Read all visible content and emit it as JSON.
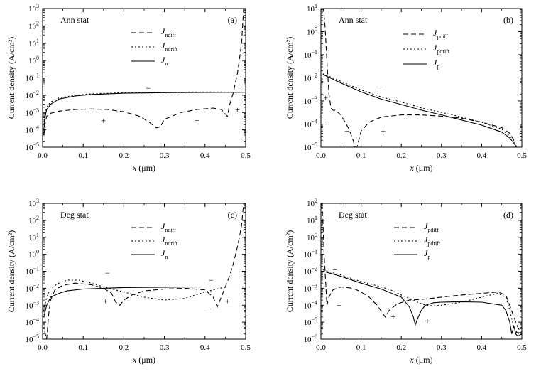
{
  "chart_data": [
    {
      "type": "line",
      "y_scale": "log",
      "panel_label": "(a)",
      "state_label": "Ann stat",
      "xlabel": "x (μm)",
      "ylabel": "Current density (A/cm²)",
      "xlim": [
        0,
        0.5
      ],
      "ylim_exp": [
        -5,
        3
      ],
      "x_ticks": [
        "0.0",
        "0.1",
        "0.2",
        "0.3",
        "0.4",
        "0.5"
      ],
      "legend": {
        "position": "top-right"
      },
      "series": [
        {
          "name": "J",
          "sub": "ndiff",
          "style": "dashed",
          "x": [
            0.003,
            0.006,
            0.01,
            0.02,
            0.04,
            0.08,
            0.12,
            0.16,
            0.2,
            0.24,
            0.265,
            0.28,
            0.29,
            0.3,
            0.34,
            0.38,
            0.42,
            0.44,
            0.455,
            0.46,
            0.47,
            0.48,
            0.49,
            0.495
          ],
          "y": [
            5e-05,
            0.0002,
            0.0006,
            0.0009,
            0.0012,
            0.0015,
            0.0016,
            0.0015,
            0.0011,
            0.0006,
            0.00025,
            0.00013,
            0.00015,
            0.0004,
            0.001,
            0.0015,
            0.0018,
            0.0015,
            0.0006,
            0.0025,
            0.015,
            0.2,
            10,
            1000
          ]
        },
        {
          "name": "J",
          "sub": "ndrift",
          "style": "dotted",
          "x": [
            0.003,
            0.006,
            0.01,
            0.02,
            0.04,
            0.08,
            0.12,
            0.2,
            0.3,
            0.4,
            0.5
          ],
          "y": [
            0.0002,
            0.0008,
            0.002,
            0.004,
            0.007,
            0.01,
            0.012,
            0.014,
            0.015,
            0.0152,
            0.015
          ]
        },
        {
          "name": "J",
          "sub": "n",
          "style": "solid",
          "x": [
            0.003,
            0.006,
            0.01,
            0.02,
            0.04,
            0.08,
            0.12,
            0.2,
            0.3,
            0.4,
            0.5
          ],
          "y": [
            0.0001,
            0.0005,
            0.0015,
            0.003,
            0.006,
            0.009,
            0.011,
            0.013,
            0.014,
            0.0145,
            0.0148
          ]
        }
      ],
      "signs": [
        {
          "text": "−",
          "x": 0.26,
          "y": 0.025
        },
        {
          "text": "+",
          "x": 0.15,
          "y": 0.00035
        },
        {
          "text": "−",
          "x": 0.38,
          "y": 0.00035
        },
        {
          "text": "+",
          "x": 0.48,
          "y": 0.0015
        }
      ]
    },
    {
      "type": "line",
      "y_scale": "log",
      "panel_label": "(b)",
      "state_label": "Ann stat",
      "xlabel": "x (μm)",
      "ylabel": "Current density (A/cm²)",
      "xlim": [
        0,
        0.5
      ],
      "ylim_exp": [
        -5,
        1
      ],
      "x_ticks": [
        "0.0",
        "0.1",
        "0.2",
        "0.3",
        "0.4",
        "0.5"
      ],
      "legend": {
        "position": "top-right"
      },
      "series": [
        {
          "name": "J",
          "sub": "pdiff",
          "style": "dashed",
          "x": [
            0.002,
            0.006,
            0.01,
            0.015,
            0.02,
            0.025,
            0.03,
            0.035,
            0.05,
            0.07,
            0.08,
            0.085,
            0.09,
            0.1,
            0.12,
            0.15,
            0.2,
            0.25,
            0.3,
            0.35,
            0.4,
            0.45,
            0.47,
            0.48,
            0.485
          ],
          "y": [
            20,
            10,
            2,
            0.05,
            0.002,
            0.0005,
            0.0004,
            0.0004,
            0.00025,
            6e-05,
            2e-05,
            8e-06,
            1e-05,
            5e-05,
            0.00012,
            0.0002,
            0.00025,
            0.00025,
            0.00022,
            0.00018,
            0.00012,
            7e-05,
            4e-05,
            2e-05,
            1e-05
          ]
        },
        {
          "name": "J",
          "sub": "pdrift",
          "style": "dotted",
          "x": [
            0.005,
            0.05,
            0.1,
            0.15,
            0.2,
            0.25,
            0.3,
            0.35,
            0.4,
            0.45,
            0.47,
            0.48,
            0.487
          ],
          "y": [
            0.015,
            0.007,
            0.003,
            0.0015,
            0.0009,
            0.0005,
            0.00032,
            0.0002,
            0.00012,
            6e-05,
            3e-05,
            2e-05,
            1e-05
          ]
        },
        {
          "name": "J",
          "sub": "p",
          "style": "solid",
          "x": [
            0.005,
            0.05,
            0.1,
            0.15,
            0.2,
            0.25,
            0.3,
            0.35,
            0.4,
            0.45,
            0.47,
            0.48,
            0.487
          ],
          "y": [
            0.014,
            0.006,
            0.0025,
            0.0012,
            0.0007,
            0.0004,
            0.00025,
            0.00015,
            9e-05,
            4.5e-05,
            2.5e-05,
            1.5e-05,
            1e-05
          ]
        }
      ],
      "signs": [
        {
          "text": "−",
          "x": 0.15,
          "y": 0.004
        },
        {
          "text": "+",
          "x": 0.012,
          "y": 0.0014
        },
        {
          "text": "−",
          "x": 0.065,
          "y": 5e-05
        },
        {
          "text": "+",
          "x": 0.155,
          "y": 5e-05
        }
      ]
    },
    {
      "type": "line",
      "y_scale": "log",
      "panel_label": "(c)",
      "state_label": "Deg stat",
      "xlabel": "x (μm)",
      "ylabel": "Current density (A/cm²)",
      "xlim": [
        0,
        0.5
      ],
      "ylim_exp": [
        -5,
        3
      ],
      "x_ticks": [
        "0.0",
        "0.1",
        "0.2",
        "0.3",
        "0.4",
        "0.5"
      ],
      "legend": {
        "position": "top-right"
      },
      "series": [
        {
          "name": "J",
          "sub": "ndiff",
          "style": "dashed",
          "x": [
            0.005,
            0.01,
            0.015,
            0.02,
            0.03,
            0.05,
            0.08,
            0.12,
            0.15,
            0.17,
            0.18,
            0.19,
            0.2,
            0.22,
            0.25,
            0.3,
            0.35,
            0.4,
            0.42,
            0.43,
            0.44,
            0.45,
            0.46,
            0.47,
            0.48,
            0.49,
            0.495
          ],
          "y": [
            3e-05,
            1e-05,
            0.0003,
            0.002,
            0.008,
            0.015,
            0.02,
            0.016,
            0.01,
            0.005,
            0.0015,
            0.001,
            0.002,
            0.004,
            0.007,
            0.009,
            0.01,
            0.008,
            0.003,
            0.0008,
            0.003,
            0.012,
            0.05,
            0.3,
            3,
            50,
            1000
          ]
        },
        {
          "name": "J",
          "sub": "ndrift",
          "style": "dotted",
          "x": [
            0.003,
            0.01,
            0.02,
            0.04,
            0.06,
            0.09,
            0.12,
            0.15,
            0.2,
            0.25,
            0.3,
            0.35,
            0.4,
            0.45,
            0.5
          ],
          "y": [
            0.0005,
            0.003,
            0.01,
            0.02,
            0.03,
            0.03,
            0.02,
            0.012,
            0.006,
            0.003,
            0.002,
            0.0025,
            0.006,
            0.012,
            0.012
          ]
        },
        {
          "name": "J",
          "sub": "n",
          "style": "solid",
          "x": [
            0.003,
            0.01,
            0.02,
            0.04,
            0.06,
            0.1,
            0.15,
            0.2,
            0.3,
            0.4,
            0.5
          ],
          "y": [
            0.0002,
            0.001,
            0.003,
            0.005,
            0.007,
            0.009,
            0.01,
            0.011,
            0.0115,
            0.012,
            0.012
          ]
        }
      ],
      "signs": [
        {
          "text": "−",
          "x": 0.16,
          "y": 0.08
        },
        {
          "text": "+",
          "x": 0.155,
          "y": 0.0017
        },
        {
          "text": "−",
          "x": 0.415,
          "y": 0.03
        },
        {
          "text": "−",
          "x": 0.41,
          "y": 0.0006
        },
        {
          "text": "+",
          "x": 0.455,
          "y": 0.0017
        }
      ]
    },
    {
      "type": "line",
      "y_scale": "log",
      "panel_label": "(d)",
      "state_label": "Deg stat",
      "xlabel": "x (μm)",
      "ylabel": "Current density (A/cm²)",
      "xlim": [
        0,
        0.5
      ],
      "ylim_exp": [
        -6,
        2
      ],
      "x_ticks": [
        "0.0",
        "0.1",
        "0.2",
        "0.3",
        "0.4",
        "0.5"
      ],
      "legend": {
        "position": "top-right"
      },
      "series": [
        {
          "name": "J",
          "sub": "pdiff",
          "style": "dashed",
          "x": [
            0.002,
            0.005,
            0.008,
            0.012,
            0.015,
            0.02,
            0.03,
            0.05,
            0.08,
            0.1,
            0.12,
            0.14,
            0.155,
            0.16,
            0.17,
            0.19,
            0.22,
            0.25,
            0.3,
            0.35,
            0.4,
            0.44,
            0.46,
            0.47,
            0.48,
            0.49,
            0.5
          ],
          "y": [
            100,
            10,
            0.1,
            0.002,
            0.0001,
            0.0003,
            0.0008,
            0.0012,
            0.001,
            0.0006,
            0.0003,
            0.0001,
            3e-05,
            2e-05,
            5e-05,
            0.00012,
            0.0002,
            0.00022,
            0.0003,
            0.0004,
            0.0005,
            0.0006,
            0.0004,
            0.0001,
            2e-05,
            5e-06,
            2e-06
          ]
        },
        {
          "name": "J",
          "sub": "pdrift",
          "style": "dotted",
          "x": [
            0.005,
            0.05,
            0.1,
            0.15,
            0.18,
            0.2,
            0.22,
            0.24,
            0.26,
            0.28,
            0.3,
            0.35,
            0.4,
            0.44,
            0.46,
            0.47,
            0.48,
            0.49,
            0.5
          ],
          "y": [
            0.012,
            0.006,
            0.0025,
            0.0012,
            0.0007,
            0.0004,
            0.00025,
            0.00015,
            0.0001,
            9e-05,
            0.0001,
            0.00015,
            0.0003,
            0.0005,
            0.0003,
            5e-05,
            5e-06,
            2e-06,
            3e-06
          ]
        },
        {
          "name": "J",
          "sub": "p",
          "style": "solid",
          "x": [
            0.005,
            0.05,
            0.1,
            0.15,
            0.2,
            0.22,
            0.23,
            0.235,
            0.24,
            0.25,
            0.26,
            0.28,
            0.3,
            0.35,
            0.4,
            0.45,
            0.46,
            0.47,
            0.475,
            0.48,
            0.485,
            0.49,
            0.5
          ],
          "y": [
            0.01,
            0.005,
            0.002,
            0.0009,
            0.0003,
            8e-05,
            2e-05,
            7e-06,
            1.5e-05,
            5e-05,
            0.0001,
            0.00014,
            0.00015,
            0.00016,
            0.00015,
            0.0001,
            5e-05,
            1e-05,
            2e-06,
            6e-06,
            2e-06,
            1.5e-06,
            2e-06
          ]
        }
      ],
      "signs": [
        {
          "text": "−",
          "x": 0.035,
          "y": 0.012
        },
        {
          "text": "−",
          "x": 0.045,
          "y": 0.0001
        },
        {
          "text": "+",
          "x": 0.18,
          "y": 2.2e-05
        },
        {
          "text": "+",
          "x": 0.265,
          "y": 1.2e-05
        },
        {
          "text": "−",
          "x": 0.49,
          "y": 2.5e-06
        }
      ]
    }
  ]
}
